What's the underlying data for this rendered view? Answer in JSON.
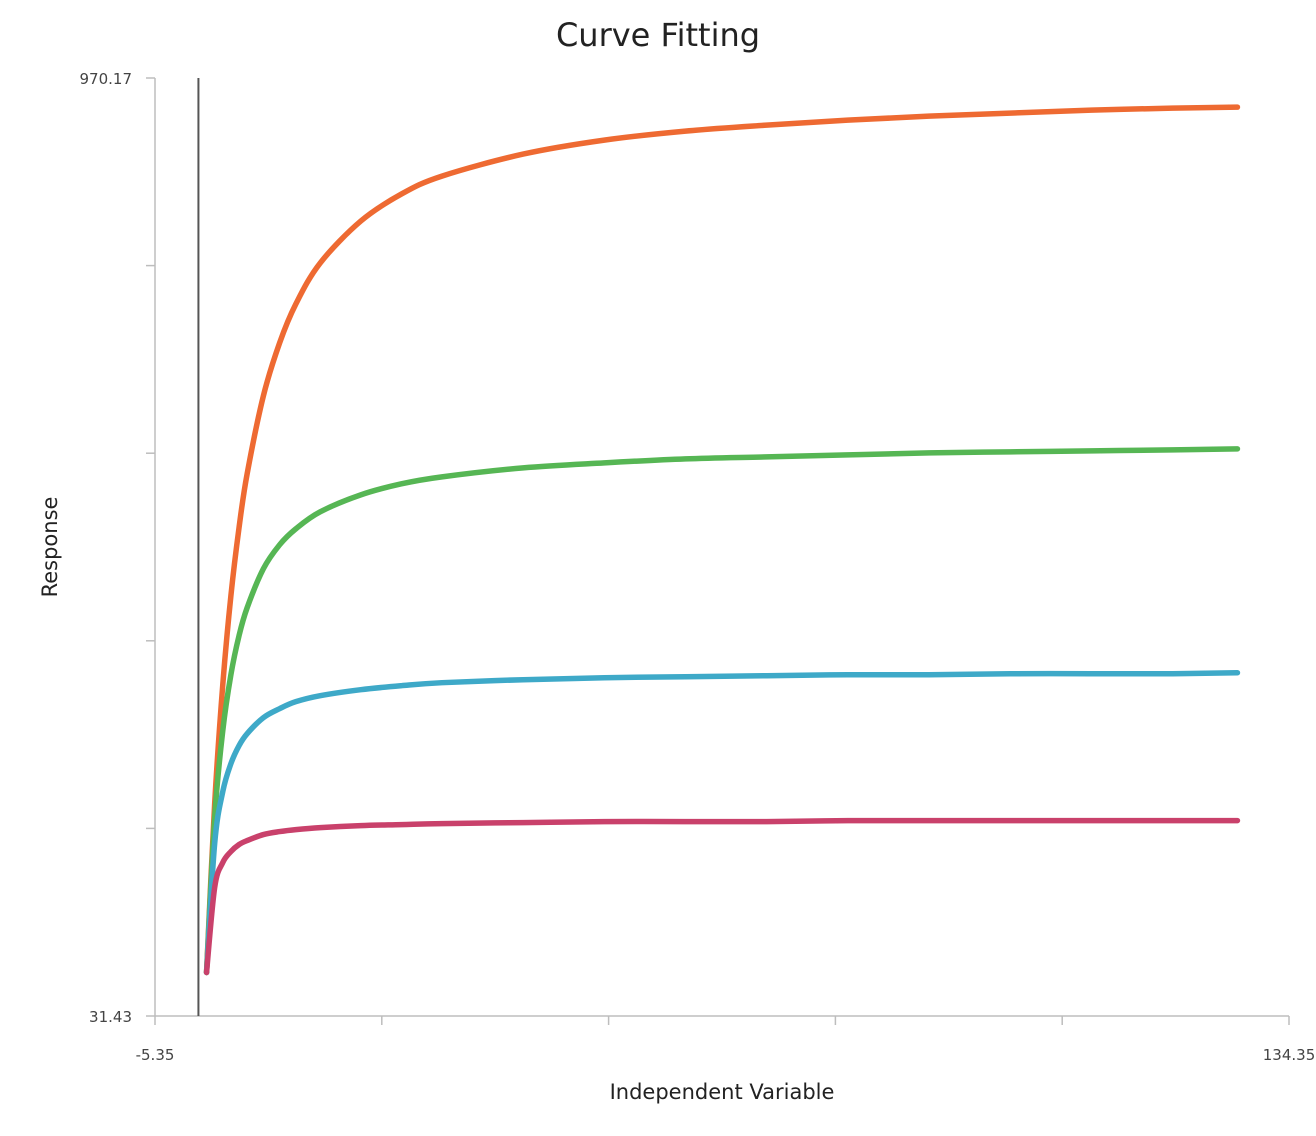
{
  "chart_data": {
    "type": "line",
    "title": "Curve Fitting",
    "xlabel": "Independent Variable",
    "ylabel": "Response",
    "xlim": [
      -5.35,
      134.35
    ],
    "ylim": [
      31.43,
      970.17
    ],
    "x_tick_labels": [
      "-5.35",
      "134.35"
    ],
    "y_tick_labels": [
      "970.17",
      "31.43"
    ],
    "x_tick_count": 6,
    "y_tick_count": 6,
    "vertical_reference_x": 0,
    "grid": false,
    "legend": "none",
    "x": [
      1,
      2,
      3,
      4,
      5,
      6,
      8,
      10,
      12,
      15,
      20,
      25,
      30,
      40,
      50,
      60,
      70,
      80,
      90,
      100,
      110,
      120,
      128
    ],
    "series": [
      {
        "color": "#ee6a32",
        "values": [
          75,
          244,
          363,
          452,
          520,
          574,
          652,
          705,
          744,
          785,
          827,
          854,
          872,
          894,
          908,
          917,
          923,
          928,
          932,
          935,
          938,
          940,
          941
        ]
      },
      {
        "color": "#56b654",
        "values": [
          75,
          230,
          317,
          373,
          412,
          440,
          479,
          503,
          519,
          536,
          553,
          564,
          571,
          580,
          585,
          589,
          591,
          593,
          595,
          596,
          597,
          598,
          599
        ]
      },
      {
        "color": "#3ea9c8",
        "values": [
          75,
          204,
          256,
          284,
          302,
          314,
          330,
          339,
          346,
          352,
          358,
          362,
          365,
          368,
          370,
          371,
          372,
          373,
          373,
          374,
          374,
          374,
          375
        ]
      },
      {
        "color": "#c9416b",
        "values": [
          75,
          160,
          185,
          196,
          203,
          207,
          213,
          216,
          218,
          220,
          222,
          223,
          224,
          225,
          226,
          226,
          226,
          227,
          227,
          227,
          227,
          227,
          227
        ]
      }
    ]
  }
}
